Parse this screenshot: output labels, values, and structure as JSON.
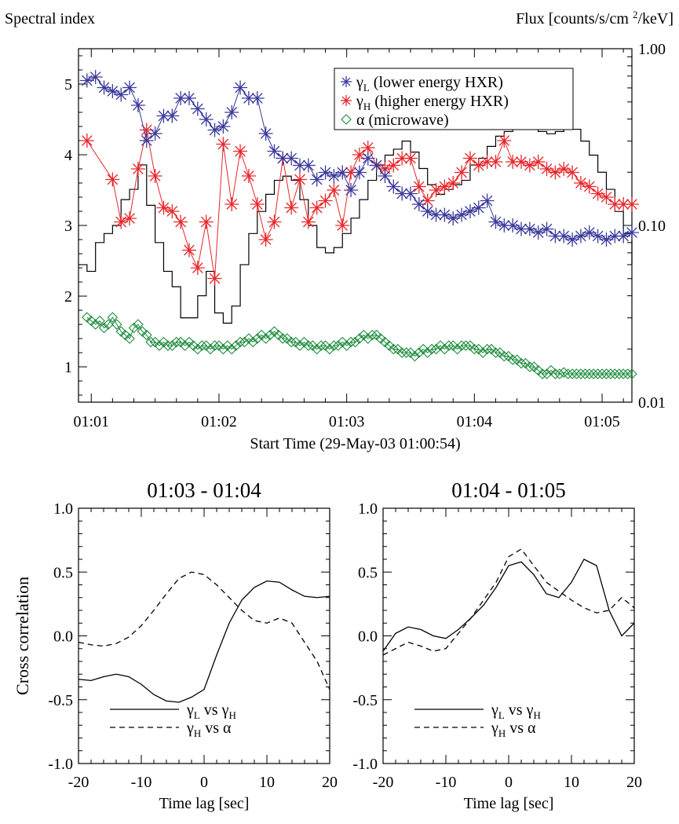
{
  "chart_data": [
    {
      "type": "line",
      "left_axis_title": "Spectral index",
      "right_axis_title": "Flux [counts/s/cm²/keV]",
      "xlabel": "Start Time (29-May-03 01:00:54)",
      "x_ticks": [
        "01:01",
        "01:02",
        "01:03",
        "01:04",
        "01:05"
      ],
      "x_unit": "seconds since start time",
      "xlim": [
        0,
        260
      ],
      "ylim": [
        0.5,
        5.5
      ],
      "y_ticks": [
        "1",
        "2",
        "3",
        "4",
        "5"
      ],
      "y2_scale": "log",
      "y2lim": [
        0.01,
        1.0
      ],
      "y2_ticks": [
        "0.01",
        "0.10",
        "1.00"
      ],
      "legend_position": "top-right",
      "legend": [
        {
          "base": "γ",
          "sub": "L",
          "text": " (lower energy HXR)",
          "color": "#3a3a9a",
          "marker": "asterisk"
        },
        {
          "base": "γ",
          "sub": "H",
          "text": " (higher energy HXR)",
          "color": "#e8262a",
          "marker": "asterisk"
        },
        {
          "base": "α",
          "sub": "",
          "text": " (microwave)",
          "color": "#1a8a3a",
          "marker": "diamond"
        }
      ],
      "series": [
        {
          "key": "gamma_L",
          "color": "#3a3a9a",
          "marker": "asterisk",
          "x": [
            4,
            8,
            12,
            16,
            20,
            24,
            28,
            32,
            36,
            40,
            44,
            48,
            52,
            56,
            60,
            64,
            68,
            72,
            76,
            80,
            84,
            88,
            92,
            96,
            100,
            104,
            108,
            112,
            116,
            120,
            124,
            128,
            132,
            136,
            140,
            144,
            148,
            152,
            156,
            160,
            164,
            168,
            172,
            176,
            180,
            184,
            188,
            192,
            196,
            200,
            204,
            208,
            212,
            216,
            220,
            224,
            228,
            232,
            236,
            240,
            244,
            248,
            252,
            256,
            260
          ],
          "y": [
            5.05,
            5.1,
            4.95,
            4.9,
            4.85,
            4.95,
            4.7,
            4.2,
            4.3,
            4.55,
            4.55,
            4.8,
            4.8,
            4.65,
            4.5,
            4.35,
            4.4,
            4.6,
            4.95,
            4.8,
            4.8,
            4.3,
            4.05,
            3.95,
            3.95,
            3.85,
            3.85,
            3.65,
            3.75,
            3.7,
            3.75,
            3.5,
            3.75,
            3.95,
            3.85,
            3.7,
            3.55,
            3.45,
            3.45,
            3.3,
            3.2,
            3.15,
            3.15,
            3.1,
            3.15,
            3.2,
            3.25,
            3.35,
            3.05,
            3.0,
            3.0,
            2.95,
            2.95,
            2.9,
            2.95,
            2.85,
            2.85,
            2.8,
            2.85,
            2.9,
            2.85,
            2.8,
            2.85,
            2.85,
            2.9
          ]
        },
        {
          "key": "gamma_H",
          "color": "#e8262a",
          "marker": "asterisk",
          "x": [
            4,
            16,
            20,
            24,
            28,
            32,
            36,
            40,
            44,
            48,
            52,
            56,
            60,
            64,
            68,
            72,
            76,
            80,
            84,
            88,
            92,
            96,
            100,
            104,
            108,
            112,
            116,
            120,
            124,
            128,
            132,
            136,
            140,
            144,
            148,
            152,
            156,
            160,
            164,
            168,
            172,
            176,
            180,
            184,
            188,
            192,
            196,
            200,
            204,
            208,
            212,
            216,
            220,
            224,
            228,
            232,
            236,
            240,
            244,
            248,
            252,
            256,
            260
          ],
          "y": [
            4.2,
            3.65,
            3.05,
            3.1,
            3.8,
            4.35,
            3.7,
            3.25,
            3.2,
            3.05,
            2.65,
            2.4,
            3.05,
            2.25,
            4.15,
            3.3,
            4.05,
            3.7,
            3.3,
            2.8,
            3.05,
            3.95,
            3.25,
            3.65,
            3.05,
            3.25,
            3.35,
            3.5,
            3.0,
            3.75,
            4.0,
            4.1,
            3.85,
            3.8,
            3.85,
            3.95,
            3.95,
            3.55,
            3.35,
            3.5,
            3.55,
            3.6,
            3.75,
            3.95,
            3.85,
            3.9,
            3.9,
            4.2,
            3.9,
            3.9,
            3.85,
            3.9,
            3.8,
            3.75,
            3.8,
            3.75,
            3.6,
            3.55,
            3.45,
            3.4,
            3.3,
            3.3,
            3.3
          ]
        },
        {
          "key": "alpha",
          "color": "#1a8a3a",
          "marker": "diamond",
          "x": [
            4,
            6,
            8,
            10,
            12,
            14,
            16,
            18,
            20,
            22,
            24,
            26,
            28,
            30,
            32,
            34,
            36,
            38,
            40,
            42,
            44,
            46,
            48,
            50,
            52,
            54,
            56,
            58,
            60,
            62,
            64,
            66,
            68,
            70,
            72,
            74,
            76,
            78,
            80,
            82,
            84,
            86,
            88,
            90,
            92,
            94,
            96,
            98,
            100,
            102,
            104,
            106,
            108,
            110,
            112,
            114,
            116,
            118,
            120,
            122,
            124,
            126,
            128,
            130,
            132,
            134,
            136,
            138,
            140,
            142,
            144,
            146,
            148,
            150,
            152,
            154,
            156,
            158,
            160,
            162,
            164,
            166,
            168,
            170,
            172,
            174,
            176,
            178,
            180,
            182,
            184,
            186,
            188,
            190,
            192,
            194,
            196,
            198,
            200,
            202,
            204,
            206,
            208,
            210,
            212,
            214,
            216,
            218,
            220,
            222,
            224,
            226,
            228,
            230,
            232,
            234,
            236,
            238,
            240,
            242,
            244,
            246,
            248,
            250,
            252,
            254,
            256,
            258,
            260
          ],
          "y": [
            1.7,
            1.65,
            1.6,
            1.65,
            1.55,
            1.6,
            1.7,
            1.6,
            1.5,
            1.45,
            1.4,
            1.55,
            1.6,
            1.5,
            1.45,
            1.35,
            1.35,
            1.3,
            1.35,
            1.3,
            1.3,
            1.35,
            1.35,
            1.3,
            1.35,
            1.3,
            1.25,
            1.3,
            1.3,
            1.25,
            1.3,
            1.3,
            1.25,
            1.3,
            1.25,
            1.3,
            1.35,
            1.35,
            1.4,
            1.35,
            1.4,
            1.45,
            1.4,
            1.45,
            1.5,
            1.45,
            1.4,
            1.4,
            1.35,
            1.35,
            1.3,
            1.35,
            1.3,
            1.3,
            1.25,
            1.3,
            1.3,
            1.25,
            1.3,
            1.3,
            1.35,
            1.3,
            1.35,
            1.35,
            1.4,
            1.45,
            1.4,
            1.45,
            1.45,
            1.4,
            1.35,
            1.3,
            1.25,
            1.25,
            1.2,
            1.2,
            1.2,
            1.15,
            1.2,
            1.25,
            1.2,
            1.25,
            1.25,
            1.3,
            1.25,
            1.3,
            1.3,
            1.25,
            1.3,
            1.3,
            1.3,
            1.25,
            1.25,
            1.2,
            1.25,
            1.25,
            1.2,
            1.2,
            1.15,
            1.15,
            1.1,
            1.1,
            1.05,
            1.05,
            1.0,
            1.0,
            0.95,
            0.9,
            0.9,
            0.95,
            0.9,
            0.9,
            0.92,
            0.9,
            0.9,
            0.9,
            0.9,
            0.9,
            0.9,
            0.9,
            0.9,
            0.9,
            0.9,
            0.9,
            0.9,
            0.9,
            0.9,
            0.9,
            0.9
          ]
        },
        {
          "key": "flux",
          "color": "#000000",
          "style": "step",
          "axis": "right",
          "x": [
            0,
            4,
            8,
            12,
            16,
            20,
            24,
            28,
            32,
            36,
            40,
            44,
            48,
            52,
            56,
            60,
            64,
            68,
            72,
            76,
            80,
            84,
            88,
            92,
            96,
            100,
            104,
            108,
            112,
            116,
            120,
            124,
            128,
            132,
            136,
            140,
            144,
            148,
            152,
            156,
            160,
            164,
            168,
            172,
            176,
            180,
            184,
            188,
            192,
            196,
            200,
            204,
            208,
            212,
            216,
            220,
            224,
            228,
            232,
            236,
            240,
            244,
            248,
            252,
            256,
            260
          ],
          "y": [
            0.06,
            0.055,
            0.08,
            0.09,
            0.1,
            0.14,
            0.16,
            0.22,
            0.13,
            0.08,
            0.055,
            0.045,
            0.03,
            0.03,
            0.04,
            0.055,
            0.032,
            0.028,
            0.035,
            0.06,
            0.09,
            0.12,
            0.15,
            0.18,
            0.19,
            0.18,
            0.14,
            0.1,
            0.075,
            0.07,
            0.075,
            0.09,
            0.11,
            0.14,
            0.18,
            0.22,
            0.25,
            0.27,
            0.3,
            0.26,
            0.21,
            0.17,
            0.15,
            0.16,
            0.17,
            0.18,
            0.22,
            0.24,
            0.28,
            0.32,
            0.34,
            0.35,
            0.36,
            0.36,
            0.34,
            0.33,
            0.34,
            0.36,
            0.35,
            0.3,
            0.25,
            0.2,
            0.16,
            0.12,
            0.09,
            0.06
          ]
        }
      ]
    },
    {
      "type": "line",
      "title": "01:03 - 01:04",
      "xlabel": "Time lag [sec]",
      "ylabel": "Cross correlation",
      "xlim": [
        -20,
        20
      ],
      "ylim": [
        -1.0,
        1.0
      ],
      "x_ticks": [
        "-20",
        "-10",
        "0",
        "10",
        "20"
      ],
      "y_ticks": [
        "-1.0",
        "-0.5",
        "0.0",
        "0.5",
        "1.0"
      ],
      "legend_position": "bottom-left",
      "legend": [
        {
          "base": "γ",
          "sub": "L",
          "text": " vs ",
          "base2": "γ",
          "sub2": "H",
          "style": "solid"
        },
        {
          "base": "γ",
          "sub": "H",
          "text": " vs ",
          "base2": "α",
          "sub2": "",
          "style": "dashed"
        }
      ],
      "series": [
        {
          "style": "solid",
          "x": [
            -20,
            -18,
            -16,
            -14,
            -12,
            -10,
            -8,
            -6,
            -4,
            -2,
            0,
            2,
            4,
            6,
            8,
            10,
            12,
            14,
            16,
            18,
            20
          ],
          "y": [
            -0.34,
            -0.35,
            -0.32,
            -0.3,
            -0.32,
            -0.38,
            -0.46,
            -0.51,
            -0.52,
            -0.48,
            -0.42,
            -0.15,
            0.1,
            0.28,
            0.38,
            0.43,
            0.42,
            0.36,
            0.31,
            0.3,
            0.31
          ]
        },
        {
          "style": "dashed",
          "x": [
            -20,
            -18,
            -16,
            -14,
            -12,
            -10,
            -8,
            -6,
            -4,
            -2,
            0,
            2,
            4,
            6,
            8,
            10,
            12,
            14,
            16,
            18,
            20
          ],
          "y": [
            -0.05,
            -0.07,
            -0.08,
            -0.06,
            -0.01,
            0.08,
            0.2,
            0.33,
            0.45,
            0.5,
            0.48,
            0.4,
            0.3,
            0.2,
            0.12,
            0.1,
            0.14,
            0.1,
            -0.05,
            -0.2,
            -0.42
          ]
        }
      ]
    },
    {
      "type": "line",
      "title": "01:04 - 01:05",
      "xlabel": "Time lag [sec]",
      "ylabel": "",
      "xlim": [
        -20,
        20
      ],
      "ylim": [
        -1.0,
        1.0
      ],
      "x_ticks": [
        "-20",
        "-10",
        "0",
        "10",
        "20"
      ],
      "y_ticks": [
        "-1.0",
        "-0.5",
        "0.0",
        "0.5",
        "1.0"
      ],
      "legend_position": "bottom-left",
      "legend": [
        {
          "base": "γ",
          "sub": "L",
          "text": " vs ",
          "base2": "γ",
          "sub2": "H",
          "style": "solid"
        },
        {
          "base": "γ",
          "sub": "H",
          "text": " vs ",
          "base2": "α",
          "sub2": "",
          "style": "dashed"
        }
      ],
      "series": [
        {
          "style": "solid",
          "x": [
            -20,
            -18,
            -16,
            -14,
            -12,
            -10,
            -8,
            -6,
            -4,
            -2,
            0,
            2,
            4,
            6,
            8,
            10,
            12,
            14,
            16,
            18,
            20
          ],
          "y": [
            -0.12,
            0.02,
            0.07,
            0.05,
            0.0,
            -0.02,
            0.05,
            0.14,
            0.24,
            0.38,
            0.55,
            0.58,
            0.48,
            0.33,
            0.3,
            0.42,
            0.6,
            0.55,
            0.2,
            0.0,
            0.1
          ]
        },
        {
          "style": "dashed",
          "x": [
            -20,
            -18,
            -16,
            -14,
            -12,
            -10,
            -8,
            -6,
            -4,
            -2,
            0,
            2,
            4,
            6,
            8,
            10,
            12,
            14,
            16,
            18,
            20
          ],
          "y": [
            -0.15,
            -0.1,
            -0.05,
            -0.08,
            -0.12,
            -0.1,
            0.02,
            0.14,
            0.28,
            0.42,
            0.62,
            0.68,
            0.55,
            0.42,
            0.35,
            0.28,
            0.22,
            0.18,
            0.2,
            0.3,
            0.22
          ]
        }
      ]
    }
  ]
}
